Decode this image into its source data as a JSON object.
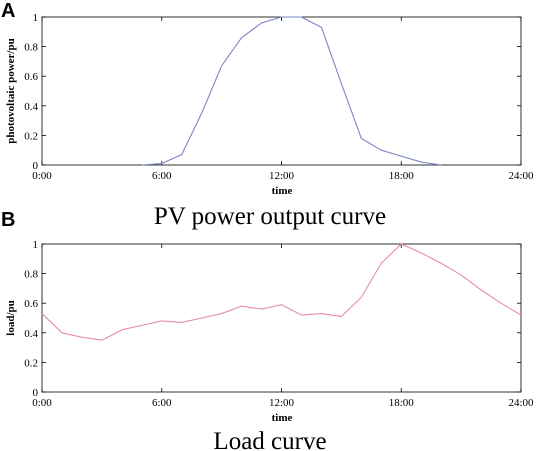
{
  "chart_data": [
    {
      "type": "line",
      "panel_label": "A",
      "caption": "PV power output curve",
      "xlabel": "time",
      "ylabel": "photovoltaic power/pu",
      "xlim": [
        0,
        24
      ],
      "ylim": [
        0,
        1
      ],
      "x_ticks": [
        {
          "value": 0,
          "label": "0:00"
        },
        {
          "value": 6,
          "label": "6:00"
        },
        {
          "value": 12,
          "label": "12:00"
        },
        {
          "value": 18,
          "label": "18:00"
        },
        {
          "value": 24,
          "label": "24:00"
        }
      ],
      "y_ticks": [
        {
          "value": 0,
          "label": "0"
        },
        {
          "value": 0.2,
          "label": "0.2"
        },
        {
          "value": 0.4,
          "label": "0.4"
        },
        {
          "value": 0.6,
          "label": "0.6"
        },
        {
          "value": 0.8,
          "label": "0.8"
        },
        {
          "value": 1,
          "label": "1"
        }
      ],
      "grid": false,
      "series": [
        {
          "color": "#7b86c4",
          "x": [
            5,
            6,
            7,
            8,
            9,
            10,
            11,
            12,
            13,
            14,
            15,
            16,
            17,
            18,
            19,
            20
          ],
          "y": [
            0,
            0.01,
            0.07,
            0.35,
            0.67,
            0.86,
            0.96,
            1.0,
            1.0,
            0.93,
            0.55,
            0.18,
            0.1,
            0.06,
            0.02,
            0
          ]
        }
      ]
    },
    {
      "type": "line",
      "panel_label": "B",
      "caption": "Load curve",
      "xlabel": "time",
      "ylabel": "load/pu",
      "xlim": [
        0,
        24
      ],
      "ylim": [
        0,
        1
      ],
      "x_ticks": [
        {
          "value": 0,
          "label": "0:00"
        },
        {
          "value": 6,
          "label": "6:00"
        },
        {
          "value": 12,
          "label": "12:00"
        },
        {
          "value": 18,
          "label": "18:00"
        },
        {
          "value": 24,
          "label": "24:00"
        }
      ],
      "y_ticks": [
        {
          "value": 0,
          "label": "0"
        },
        {
          "value": 0.2,
          "label": "0.2"
        },
        {
          "value": 0.4,
          "label": "0.4"
        },
        {
          "value": 0.6,
          "label": "0.6"
        },
        {
          "value": 0.8,
          "label": "0.8"
        },
        {
          "value": 1,
          "label": "1"
        }
      ],
      "grid": false,
      "series": [
        {
          "color": "#e88aa8",
          "x": [
            0,
            1,
            2,
            3,
            4,
            5,
            6,
            7,
            8,
            9,
            10,
            11,
            12,
            13,
            14,
            15,
            16,
            17,
            18,
            19,
            20,
            21,
            22,
            23,
            24
          ],
          "y": [
            0.53,
            0.4,
            0.37,
            0.35,
            0.42,
            0.45,
            0.48,
            0.47,
            0.5,
            0.53,
            0.58,
            0.56,
            0.59,
            0.52,
            0.53,
            0.51,
            0.64,
            0.87,
            1.0,
            0.94,
            0.87,
            0.79,
            0.69,
            0.6,
            0.52
          ]
        }
      ]
    }
  ]
}
